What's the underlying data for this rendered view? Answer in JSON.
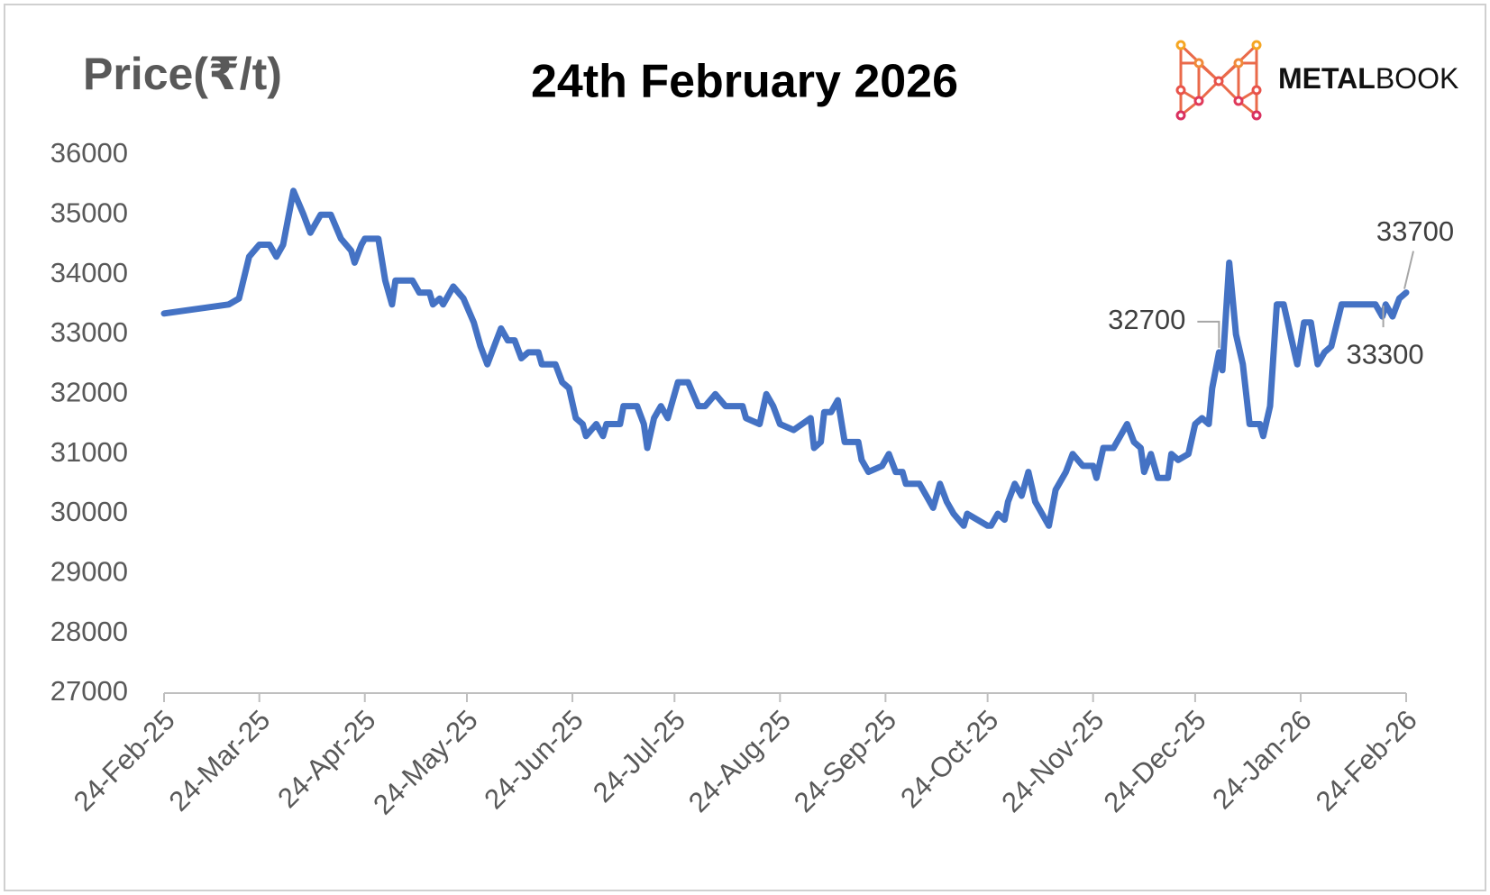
{
  "chart_data": {
    "type": "line",
    "title": "24th February 2026",
    "y_label": "Price(₹/t)",
    "brand": {
      "bold": "METAL",
      "light": "BOOK"
    },
    "x": [
      "2025-02-24",
      "2025-03-15",
      "2025-03-18",
      "2025-03-21",
      "2025-03-24",
      "2025-03-27",
      "2025-03-29",
      "2025-03-31",
      "2025-04-03",
      "2025-04-06",
      "2025-04-08",
      "2025-04-11",
      "2025-04-14",
      "2025-04-17",
      "2025-04-20",
      "2025-04-21",
      "2025-04-23",
      "2025-04-24",
      "2025-04-28",
      "2025-04-30",
      "2025-05-02",
      "2025-05-03",
      "2025-05-08",
      "2025-05-10",
      "2025-05-13",
      "2025-05-14",
      "2025-05-16",
      "2025-05-17",
      "2025-05-20",
      "2025-05-23",
      "2025-05-26",
      "2025-05-28",
      "2025-05-30",
      "2025-06-01",
      "2025-06-03",
      "2025-06-05",
      "2025-06-07",
      "2025-06-09",
      "2025-06-11",
      "2025-06-14",
      "2025-06-15",
      "2025-06-19",
      "2025-06-21",
      "2025-06-23",
      "2025-06-25",
      "2025-06-27",
      "2025-06-28",
      "2025-07-01",
      "2025-07-03",
      "2025-07-04",
      "2025-07-08",
      "2025-07-09",
      "2025-07-13",
      "2025-07-15",
      "2025-07-16",
      "2025-07-18",
      "2025-07-20",
      "2025-07-22",
      "2025-07-23",
      "2025-07-25",
      "2025-07-28",
      "2025-07-31",
      "2025-08-02",
      "2025-08-05",
      "2025-08-08",
      "2025-08-13",
      "2025-08-14",
      "2025-08-18",
      "2025-08-20",
      "2025-08-22",
      "2025-08-24",
      "2025-08-28",
      "2025-09-02",
      "2025-09-03",
      "2025-09-05",
      "2025-09-06",
      "2025-09-08",
      "2025-09-10",
      "2025-09-12",
      "2025-09-16",
      "2025-09-17",
      "2025-09-19",
      "2025-09-23",
      "2025-09-25",
      "2025-09-27",
      "2025-09-29",
      "2025-09-30",
      "2025-10-04",
      "2025-10-06",
      "2025-10-08",
      "2025-10-10",
      "2025-10-12",
      "2025-10-14",
      "2025-10-17",
      "2025-10-18",
      "2025-10-24",
      "2025-10-25",
      "2025-10-27",
      "2025-10-29",
      "2025-10-30",
      "2025-11-01",
      "2025-11-03",
      "2025-11-05",
      "2025-11-07",
      "2025-11-11",
      "2025-11-13",
      "2025-11-16",
      "2025-11-18",
      "2025-11-21",
      "2025-11-24",
      "2025-11-25",
      "2025-11-27",
      "2025-11-30",
      "2025-12-02",
      "2025-12-04",
      "2025-12-06",
      "2025-12-08",
      "2025-12-09",
      "2025-12-11",
      "2025-12-13",
      "2025-12-16",
      "2025-12-17",
      "2025-12-19",
      "2025-12-22",
      "2025-12-24",
      "2025-12-26",
      "2025-12-28",
      "2025-12-29",
      "2025-12-31",
      "2026-01-01",
      "2026-01-03",
      "2026-01-05",
      "2026-01-07",
      "2026-01-09",
      "2026-01-12",
      "2026-01-13",
      "2026-01-15",
      "2026-01-17",
      "2026-01-19",
      "2026-01-21",
      "2026-01-23",
      "2026-01-25",
      "2026-01-27",
      "2026-01-29",
      "2026-01-31",
      "2026-02-02",
      "2026-02-05",
      "2026-02-07",
      "2026-02-15",
      "2026-02-17",
      "2026-02-18",
      "2026-02-20",
      "2026-02-22",
      "2026-02-24"
    ],
    "series": [
      {
        "name": "Price",
        "color": "#4472c4",
        "values": [
          33350,
          33500,
          33600,
          34300,
          34500,
          34500,
          34300,
          34500,
          35400,
          35000,
          34700,
          35000,
          35000,
          34600,
          34400,
          34200,
          34500,
          34600,
          34600,
          33900,
          33500,
          33900,
          33900,
          33700,
          33700,
          33500,
          33600,
          33500,
          33800,
          33600,
          33200,
          32800,
          32500,
          32800,
          33100,
          32900,
          32900,
          32600,
          32700,
          32700,
          32500,
          32500,
          32200,
          32100,
          31600,
          31500,
          31300,
          31500,
          31300,
          31500,
          31500,
          31800,
          31800,
          31500,
          31100,
          31600,
          31800,
          31600,
          31800,
          32200,
          32200,
          31800,
          31800,
          32000,
          31800,
          31800,
          31600,
          31500,
          32000,
          31800,
          31500,
          31400,
          31600,
          31100,
          31200,
          31700,
          31700,
          31900,
          31200,
          31200,
          30900,
          30700,
          30800,
          31000,
          30700,
          30700,
          30500,
          30500,
          30300,
          30100,
          30500,
          30200,
          30000,
          29800,
          30000,
          29800,
          29800,
          30000,
          29900,
          30200,
          30500,
          30300,
          30700,
          30200,
          29800,
          30400,
          30700,
          31000,
          30800,
          30800,
          30600,
          31100,
          31100,
          31300,
          31500,
          31200,
          31100,
          30700,
          31000,
          30600,
          30600,
          31000,
          30900,
          31000,
          31500,
          31600,
          31500,
          32100,
          32700,
          32400,
          34200,
          33000,
          32500,
          31500,
          31500,
          31300,
          31800,
          33500,
          33500,
          33000,
          32500,
          33200,
          33200,
          32500,
          32700,
          32800,
          33500,
          33500,
          33500,
          33300,
          33500,
          33300,
          33600,
          33700
        ]
      }
    ],
    "annotations": [
      {
        "x": "2025-12-31",
        "y": 32700
      },
      {
        "x": "2026-02-17",
        "y": 33300
      },
      {
        "x": "2026-02-24",
        "y": 33700
      }
    ],
    "xlim": [
      "2025-02-24",
      "2026-02-24"
    ],
    "xticks": [
      {
        "value": "2025-02-24",
        "label": "24-Feb-25"
      },
      {
        "value": "2025-03-24",
        "label": "24-Mar-25"
      },
      {
        "value": "2025-04-24",
        "label": "24-Apr-25"
      },
      {
        "value": "2025-05-24",
        "label": "24-May-25"
      },
      {
        "value": "2025-06-24",
        "label": "24-Jun-25"
      },
      {
        "value": "2025-07-24",
        "label": "24-Jul-25"
      },
      {
        "value": "2025-08-24",
        "label": "24-Aug-25"
      },
      {
        "value": "2025-09-24",
        "label": "24-Sep-25"
      },
      {
        "value": "2025-10-24",
        "label": "24-Oct-25"
      },
      {
        "value": "2025-11-24",
        "label": "24-Nov-25"
      },
      {
        "value": "2025-12-24",
        "label": "24-Dec-25"
      },
      {
        "value": "2026-01-24",
        "label": "24-Jan-26"
      },
      {
        "value": "2026-02-24",
        "label": "24-Feb-26"
      }
    ],
    "ylim": [
      27000,
      36000
    ],
    "yticks": [
      27000,
      28000,
      29000,
      30000,
      31000,
      32000,
      33000,
      34000,
      35000,
      36000
    ],
    "grid": false
  }
}
